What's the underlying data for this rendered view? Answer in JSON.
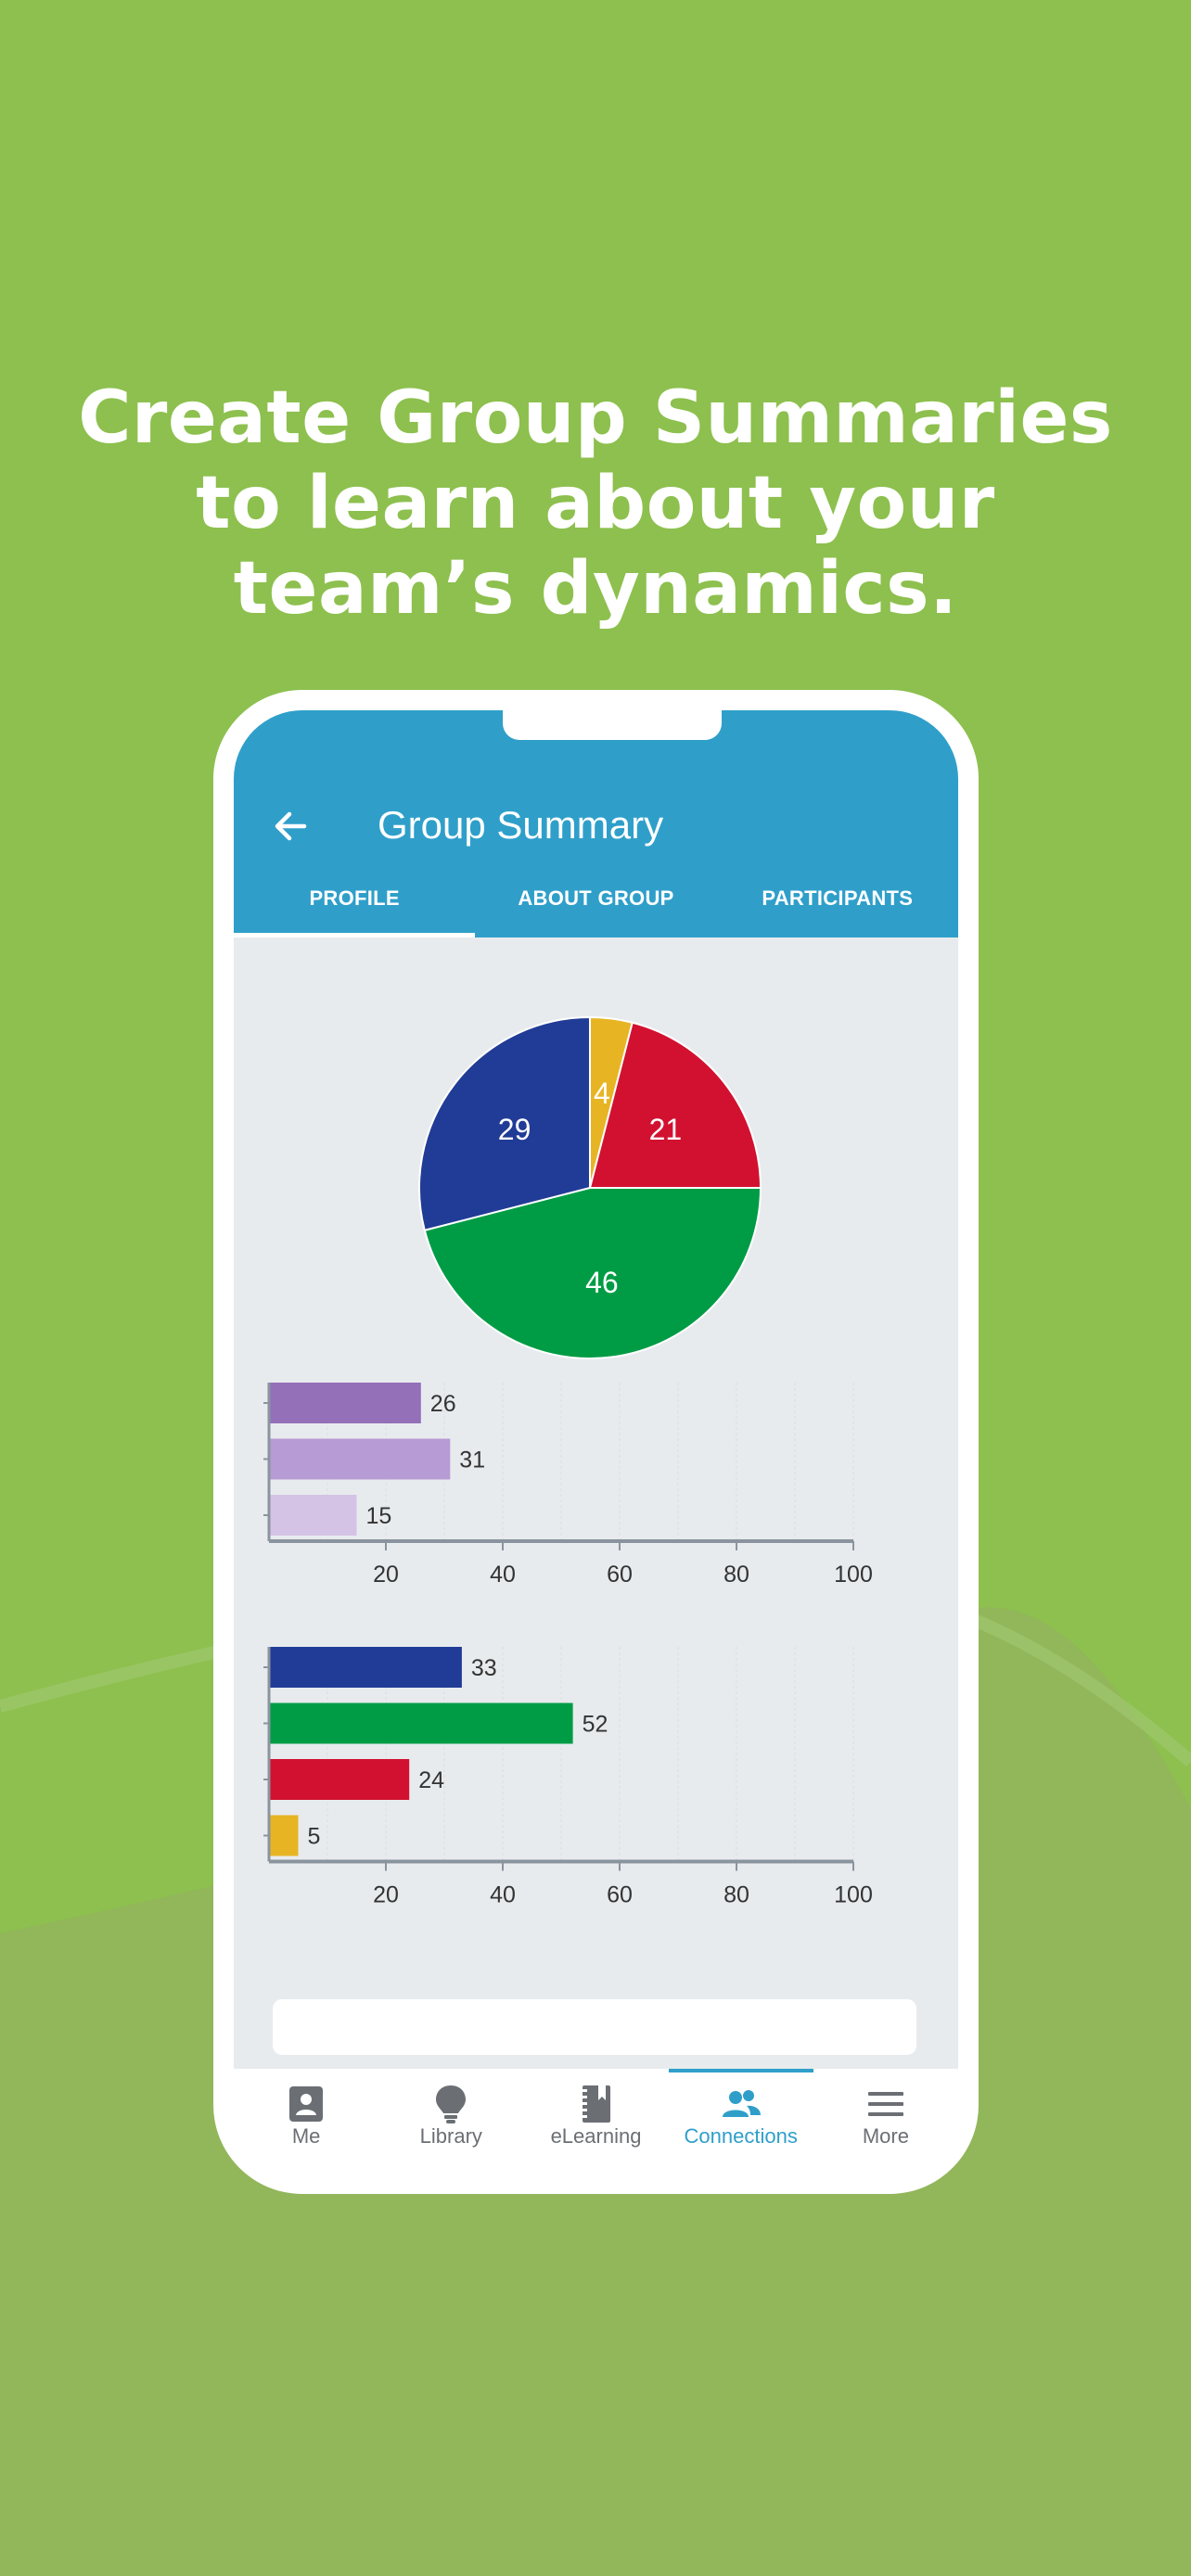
{
  "headline": {
    "line1": "Create Group Summaries",
    "line2": "to learn about your",
    "line3": "team’s dynamics."
  },
  "colors": {
    "background": "#8dc04e",
    "background_lower": "#92b65a",
    "appbar": "#2f9fca",
    "screen_bg": "#e8ebee"
  },
  "app": {
    "title": "Group Summary",
    "back_icon": "arrow-left-icon",
    "tabs": [
      {
        "label": "PROFILE",
        "active": true
      },
      {
        "label": "ABOUT GROUP",
        "active": false
      },
      {
        "label": "PARTICIPANTS",
        "active": false
      }
    ]
  },
  "chart_data": [
    {
      "type": "pie",
      "slices": [
        {
          "value": 4,
          "label": "4",
          "color": "#e7b524"
        },
        {
          "value": 21,
          "label": "21",
          "color": "#d21130"
        },
        {
          "value": 46,
          "label": "46",
          "color": "#009c45"
        },
        {
          "value": 29,
          "label": "29",
          "color": "#213c96"
        }
      ]
    },
    {
      "type": "bar",
      "orientation": "horizontal",
      "values": [
        26,
        31,
        15
      ],
      "colors": [
        "#9470b8",
        "#b79bd4",
        "#d4c3e5"
      ],
      "xlim": [
        0,
        100
      ],
      "xticks": [
        "20",
        "40",
        "60",
        "80",
        "100"
      ],
      "grid": true
    },
    {
      "type": "bar",
      "orientation": "horizontal",
      "values": [
        33,
        52,
        24,
        5
      ],
      "colors": [
        "#213c96",
        "#009c45",
        "#d21130",
        "#e7b524"
      ],
      "xlim": [
        0,
        100
      ],
      "xticks": [
        "20",
        "40",
        "60",
        "80",
        "100"
      ],
      "grid": true
    }
  ],
  "bottom_nav": [
    {
      "label": "Me",
      "icon": "contact-card-icon",
      "active": false
    },
    {
      "label": "Library",
      "icon": "lightbulb-icon",
      "active": false
    },
    {
      "label": "eLearning",
      "icon": "notebook-icon",
      "active": false
    },
    {
      "label": "Connections",
      "icon": "people-icon",
      "active": true
    },
    {
      "label": "More",
      "icon": "hamburger-menu-icon",
      "active": false
    }
  ]
}
